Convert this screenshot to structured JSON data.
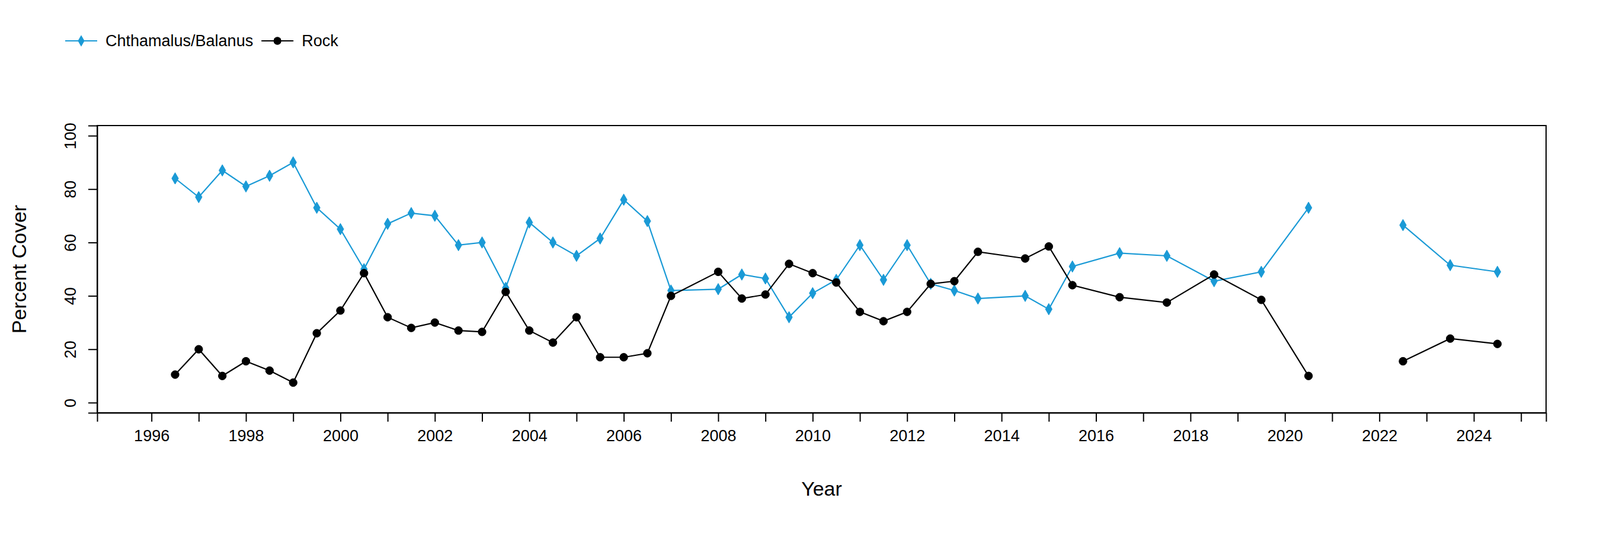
{
  "chart_data": {
    "type": "line",
    "x_label": "Year",
    "y_label": "Percent Cover",
    "x": [
      1996.5,
      1997,
      1997.5,
      1998,
      1998.5,
      1999,
      1999.5,
      2000,
      2000.5,
      2001,
      2001.5,
      2002,
      2002.5,
      2003,
      2003.5,
      2004,
      2004.5,
      2005,
      2005.5,
      2006,
      2006.5,
      2007,
      2008,
      2008.5,
      2009,
      2009.5,
      2010,
      2010.5,
      2011,
      2011.5,
      2012,
      2012.5,
      2013,
      2013.5,
      2014.5,
      2015,
      2015.5,
      2016.5,
      2017.5,
      2018.5,
      2019.5,
      2020.5,
      2021.5,
      2022.5,
      2023.5,
      2024.5
    ],
    "series": [
      {
        "name": "Chthamalus/Balanus",
        "color": "#1a9ad6",
        "marker": "diamond",
        "values": [
          84,
          77,
          87,
          81,
          85,
          90,
          73,
          65,
          50,
          67,
          71,
          70,
          59,
          60,
          43,
          67.5,
          60,
          55,
          61.5,
          76,
          68,
          42,
          42.5,
          48,
          46.5,
          32,
          41,
          46,
          59,
          46,
          59,
          44.5,
          42,
          39,
          40,
          35,
          51,
          56,
          55,
          45.5,
          49,
          73,
          null,
          66.5,
          51.5,
          49
        ]
      },
      {
        "name": "Rock",
        "color": "#000000",
        "marker": "circle",
        "values": [
          10.5,
          20,
          10,
          15.5,
          12,
          7.5,
          26,
          34.5,
          48.5,
          32,
          28,
          30,
          27,
          26.5,
          41.5,
          27,
          22.5,
          32,
          17,
          17,
          18.5,
          40,
          49,
          39,
          40.5,
          52,
          48.5,
          45,
          34,
          30.5,
          34,
          44.5,
          45.5,
          56.5,
          54,
          58.5,
          44,
          39.5,
          37.5,
          48,
          38.5,
          10,
          null,
          15.5,
          24,
          22
        ]
      }
    ],
    "xlim": [
      1994.85,
      2025.53
    ],
    "ylim": [
      -3.8,
      103.8
    ],
    "xticks": [
      1996,
      {
        "value": 1997,
        "label": null
      },
      1998,
      {
        "value": 1999,
        "label": null
      },
      2000,
      {
        "value": 2001,
        "label": null
      },
      2002,
      {
        "value": 2003,
        "label": null
      },
      2004,
      {
        "value": 2005,
        "label": null
      },
      2006,
      {
        "value": 2007,
        "label": null
      },
      2008,
      {
        "value": 2009,
        "label": null
      },
      2010,
      {
        "value": 2011,
        "label": null
      },
      2012,
      {
        "value": 2013,
        "label": null
      },
      2014,
      {
        "value": 2015,
        "label": null
      },
      2016,
      {
        "value": 2017,
        "label": null
      },
      2018,
      {
        "value": 2019,
        "label": null
      },
      2020,
      {
        "value": 2021,
        "label": null
      },
      2022,
      {
        "value": 2023,
        "label": null
      },
      2024,
      {
        "value": 2025,
        "label": null
      }
    ],
    "yticks": [
      0,
      20,
      40,
      60,
      80,
      100
    ],
    "legend": "top-left",
    "grid": false
  }
}
